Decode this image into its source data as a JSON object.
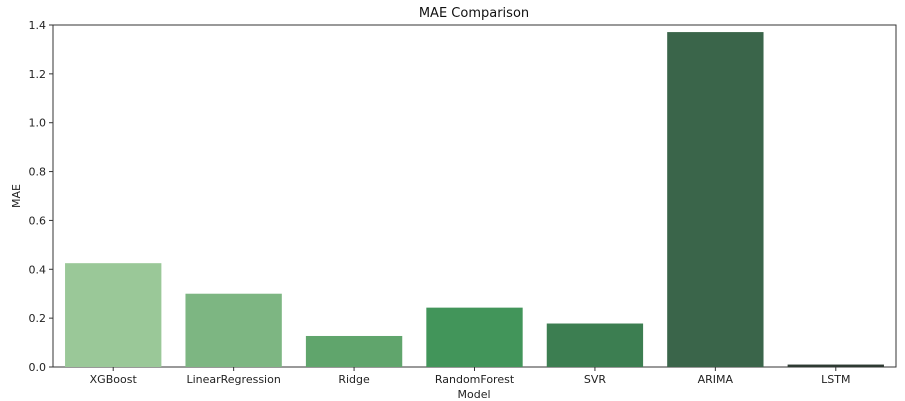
{
  "chart_data": {
    "type": "bar",
    "title": "MAE Comparison",
    "xlabel": "Model",
    "ylabel": "MAE",
    "categories": [
      "XGBoost",
      "LinearRegression",
      "Ridge",
      "RandomForest",
      "SVR",
      "ARIMA",
      "LSTM"
    ],
    "values": [
      0.425,
      0.3,
      0.127,
      0.243,
      0.178,
      1.371,
      0.01
    ],
    "colors": [
      "#9ac898",
      "#7db682",
      "#60a56c",
      "#42955a",
      "#3c7e51",
      "#3a654a",
      "#2d3a32"
    ],
    "ylim": [
      0,
      1.4
    ],
    "yticks": [
      "0.0",
      "0.2",
      "0.4",
      "0.6",
      "0.8",
      "1.0",
      "1.2",
      "1.4"
    ],
    "grid": false,
    "legend": "none"
  }
}
